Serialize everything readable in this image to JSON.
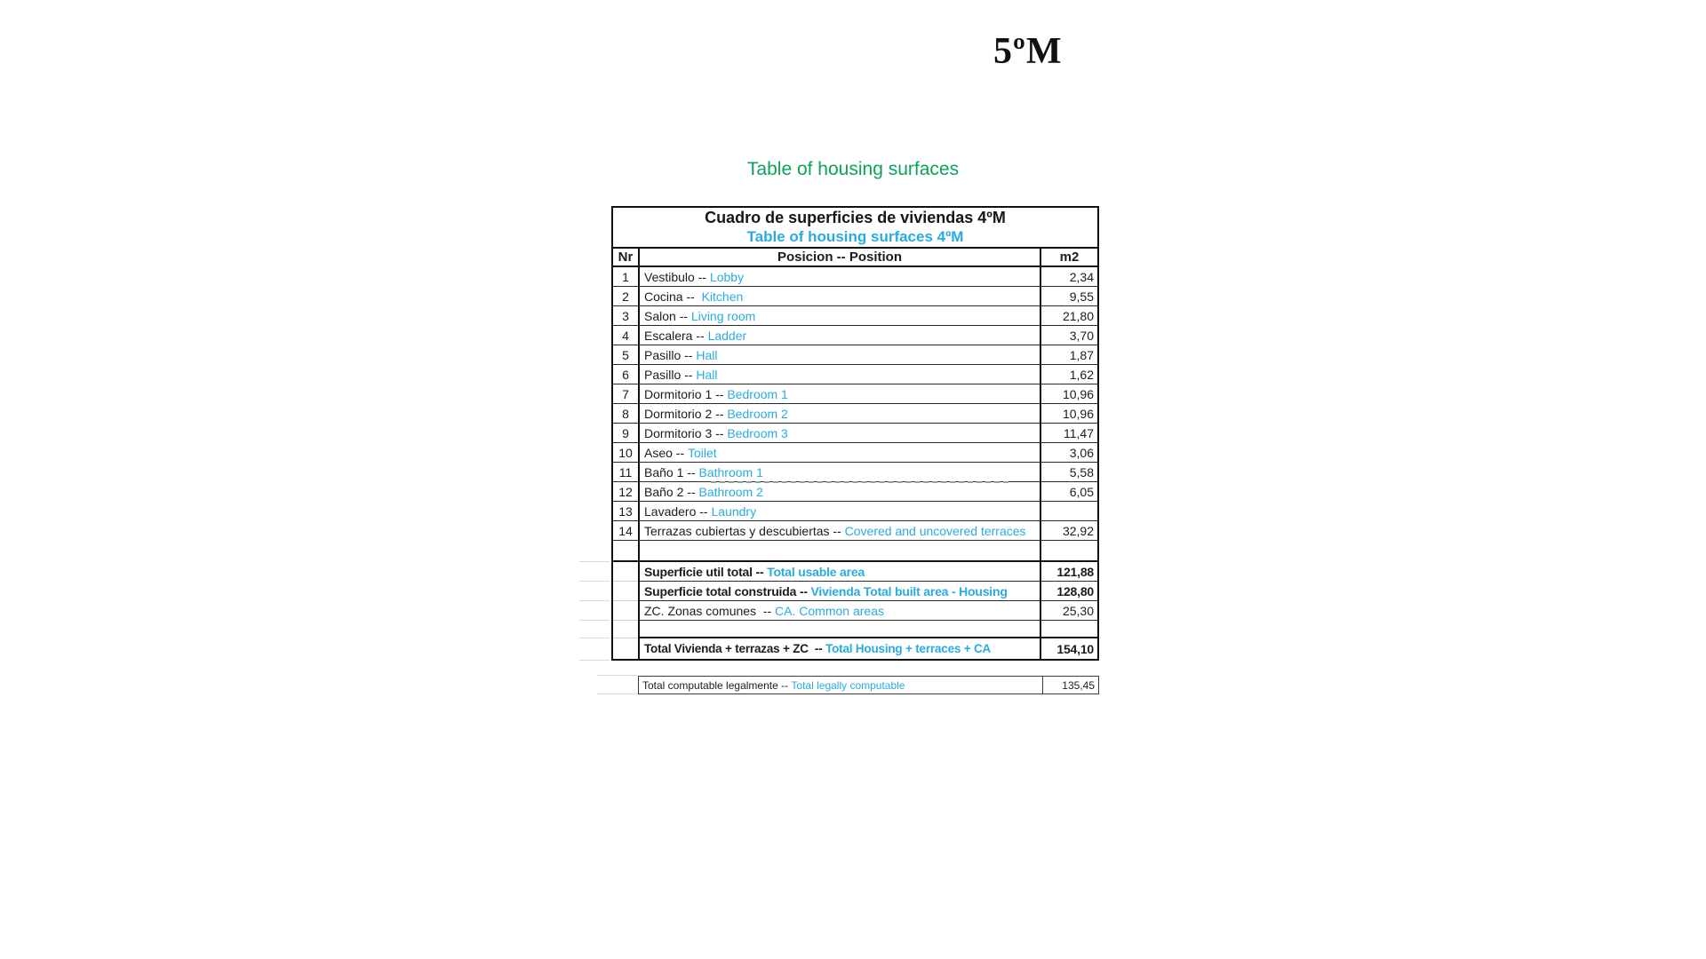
{
  "page": {
    "plan_label": "5ºM",
    "section_title": "Table of housing surfaces"
  },
  "colors": {
    "accent_cyan": "#29abe2",
    "accent_green": "#0aa35c",
    "text_black": "#1c1c1c"
  },
  "table": {
    "title_es": "Cuadro de superficies de viviendas 4ºM",
    "title_en": "Table of housing surfaces 4ºM",
    "col_nr": "Nr",
    "col_position": "Posicion -- Position",
    "col_m2": "m2",
    "rows": [
      {
        "nr": "1",
        "es": "Vestibulo -- ",
        "en": "Lobby",
        "m2": "2,34"
      },
      {
        "nr": "2",
        "es": "Cocina --  ",
        "en": "Kitchen",
        "m2": "9,55"
      },
      {
        "nr": "3",
        "es": "Salon -- ",
        "en": "Living room",
        "m2": "21,80"
      },
      {
        "nr": "4",
        "es": "Escalera -- ",
        "en": "Ladder",
        "m2": "3,70"
      },
      {
        "nr": "5",
        "es": "Pasillo -- ",
        "en": "Hall",
        "m2": "1,87"
      },
      {
        "nr": "6",
        "es": "Pasillo -- ",
        "en": "Hall",
        "m2": "1,62"
      },
      {
        "nr": "7",
        "es": "Dormitorio 1 -- ",
        "en": "Bedroom 1",
        "m2": "10,96"
      },
      {
        "nr": "8",
        "es": "Dormitorio 2 -- ",
        "en": "Bedroom 2",
        "m2": "10,96"
      },
      {
        "nr": "9",
        "es": "Dormitorio 3 -- ",
        "en": "Bedroom 3",
        "m2": "11,47"
      },
      {
        "nr": "10",
        "es": "Aseo -- ",
        "en": "Toilet",
        "m2": "3,06"
      },
      {
        "nr": "11",
        "es": "Baño 1 -- ",
        "en": "Bathroom 1",
        "m2": "5,58"
      },
      {
        "nr": "12",
        "es": "Baño 2 -- ",
        "en": "Bathroom 2",
        "m2": "6,05"
      },
      {
        "nr": "13",
        "es": "Lavadero -- ",
        "en": "Laundry",
        "m2": ""
      },
      {
        "nr": "14",
        "es": "Terrazas cubiertas y descubiertas -- ",
        "en": "Covered and uncovered terraces",
        "m2": "32,92"
      }
    ],
    "summary": [
      {
        "es": "Superficie util total -- ",
        "en": "Total usable area",
        "m2": "121,88"
      },
      {
        "es": "Superficie total construida -- ",
        "en": "Vivienda Total built area - Housing",
        "m2": "128,80"
      },
      {
        "es": "ZC. Zonas comunes  -- ",
        "en": "CA. Common areas",
        "m2": "25,30"
      }
    ],
    "grand_total": {
      "es": "Total Vivienda + terrazas + ZC  -- ",
      "en": "Total Housing + terraces + CA",
      "m2": "154,10"
    },
    "legal_total": {
      "es": "Total computable legalmente -- ",
      "en": "Total legally computable",
      "m2": "135,45"
    }
  }
}
